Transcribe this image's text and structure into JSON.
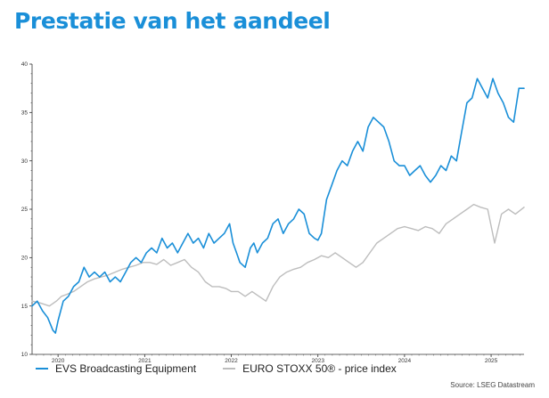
{
  "title": "Prestatie van het aandeel",
  "colors": {
    "title": "#1a8fd8",
    "evs": "#1a8fd8",
    "index": "#bdbdbd",
    "axis": "#333333"
  },
  "legend": {
    "evs_label": "EVS Broadcasting Equipment",
    "index_label": "EURO STOXX 50® - price index"
  },
  "source": "Source: LSEG Datastream",
  "chart_data": {
    "type": "line",
    "title": "",
    "xlabel": "",
    "ylabel": "",
    "ylim": [
      10,
      40
    ],
    "yticks": [
      10,
      15,
      20,
      25,
      30,
      35,
      40
    ],
    "xlim": [
      2019.7,
      2025.38
    ],
    "xticks": [
      {
        "value": 2020.0,
        "label": "2020"
      },
      {
        "value": 2021.0,
        "label": "2021"
      },
      {
        "value": 2022.0,
        "label": "2022"
      },
      {
        "value": 2023.0,
        "label": "2023"
      },
      {
        "value": 2024.0,
        "label": "2024"
      },
      {
        "value": 2025.0,
        "label": "2025"
      }
    ],
    "grid": false,
    "legend_position": "bottom",
    "series": [
      {
        "name": "EVS Broadcasting Equipment",
        "color": "#1a8fd8",
        "x": [
          2019.7,
          2019.76,
          2019.82,
          2019.88,
          2019.94,
          2019.97,
          2020.0,
          2020.06,
          2020.12,
          2020.18,
          2020.24,
          2020.3,
          2020.36,
          2020.42,
          2020.48,
          2020.54,
          2020.6,
          2020.66,
          2020.72,
          2020.78,
          2020.84,
          2020.9,
          2020.96,
          2021.02,
          2021.08,
          2021.14,
          2021.2,
          2021.26,
          2021.32,
          2021.38,
          2021.44,
          2021.5,
          2021.56,
          2021.62,
          2021.68,
          2021.74,
          2021.8,
          2021.86,
          2021.92,
          2021.98,
          2022.02,
          2022.06,
          2022.1,
          2022.16,
          2022.22,
          2022.26,
          2022.3,
          2022.36,
          2022.42,
          2022.48,
          2022.54,
          2022.6,
          2022.66,
          2022.72,
          2022.78,
          2022.84,
          2022.9,
          2022.96,
          2023.0,
          2023.04,
          2023.1,
          2023.16,
          2023.22,
          2023.28,
          2023.34,
          2023.4,
          2023.46,
          2023.52,
          2023.58,
          2023.64,
          2023.7,
          2023.76,
          2023.82,
          2023.88,
          2023.94,
          2024.0,
          2024.06,
          2024.12,
          2024.18,
          2024.24,
          2024.3,
          2024.36,
          2024.42,
          2024.48,
          2024.54,
          2024.6,
          2024.66,
          2024.72,
          2024.78,
          2024.84,
          2024.9,
          2024.96,
          2025.02,
          2025.08,
          2025.14,
          2025.2,
          2025.26,
          2025.32,
          2025.38
        ],
        "y": [
          15.0,
          15.5,
          14.5,
          13.8,
          12.5,
          12.2,
          13.5,
          15.5,
          16.0,
          17.0,
          17.5,
          19.0,
          18.0,
          18.5,
          18.0,
          18.5,
          17.5,
          18.0,
          17.5,
          18.5,
          19.5,
          20.0,
          19.5,
          20.5,
          21.0,
          20.5,
          22.0,
          21.0,
          21.5,
          20.5,
          21.5,
          22.5,
          21.5,
          22.0,
          21.0,
          22.5,
          21.5,
          22.0,
          22.5,
          23.5,
          21.5,
          20.5,
          19.5,
          19.0,
          21.0,
          21.5,
          20.5,
          21.5,
          22.0,
          23.5,
          24.0,
          22.5,
          23.5,
          24.0,
          25.0,
          24.5,
          22.5,
          22.0,
          21.8,
          22.5,
          26.0,
          27.5,
          29.0,
          30.0,
          29.5,
          31.0,
          32.0,
          31.0,
          33.5,
          34.5,
          34.0,
          33.5,
          32.0,
          30.0,
          29.5,
          29.5,
          28.5,
          29.0,
          29.5,
          28.5,
          27.8,
          28.5,
          29.5,
          29.0,
          30.5,
          30.0,
          33.0,
          36.0,
          36.5,
          38.5,
          37.5,
          36.5,
          38.5,
          37.0,
          36.0,
          34.5,
          34.0,
          37.5,
          37.5
        ]
      },
      {
        "name": "EURO STOXX 50® - price index",
        "color": "#bdbdbd",
        "x": [
          2019.7,
          2019.8,
          2019.9,
          2019.98,
          2020.04,
          2020.1,
          2020.18,
          2020.26,
          2020.34,
          2020.42,
          2020.5,
          2020.58,
          2020.66,
          2020.74,
          2020.82,
          2020.9,
          2020.98,
          2021.06,
          2021.14,
          2021.22,
          2021.3,
          2021.38,
          2021.46,
          2021.54,
          2021.62,
          2021.7,
          2021.78,
          2021.86,
          2021.94,
          2022.0,
          2022.08,
          2022.16,
          2022.24,
          2022.32,
          2022.4,
          2022.48,
          2022.56,
          2022.64,
          2022.72,
          2022.8,
          2022.88,
          2022.96,
          2023.04,
          2023.12,
          2023.2,
          2023.28,
          2023.36,
          2023.44,
          2023.52,
          2023.6,
          2023.68,
          2023.76,
          2023.84,
          2023.92,
          2024.0,
          2024.08,
          2024.16,
          2024.24,
          2024.32,
          2024.4,
          2024.48,
          2024.56,
          2024.64,
          2024.72,
          2024.8,
          2024.88,
          2024.96,
          2025.04,
          2025.12,
          2025.2,
          2025.28,
          2025.38
        ],
        "y": [
          15.5,
          15.3,
          15.0,
          15.5,
          16.0,
          16.2,
          16.5,
          17.0,
          17.5,
          17.8,
          18.0,
          18.2,
          18.5,
          18.8,
          19.0,
          19.2,
          19.5,
          19.5,
          19.3,
          19.8,
          19.2,
          19.5,
          19.8,
          19.0,
          18.5,
          17.5,
          17.0,
          17.0,
          16.8,
          16.5,
          16.5,
          16.0,
          16.5,
          16.0,
          15.5,
          17.0,
          18.0,
          18.5,
          18.8,
          19.0,
          19.5,
          19.8,
          20.2,
          20.0,
          20.5,
          20.0,
          19.5,
          19.0,
          19.5,
          20.5,
          21.5,
          22.0,
          22.5,
          23.0,
          23.2,
          23.0,
          22.8,
          23.2,
          23.0,
          22.5,
          23.5,
          24.0,
          24.5,
          25.0,
          25.5,
          25.2,
          25.0,
          21.5,
          24.5,
          25.0,
          24.5,
          25.2
        ]
      }
    ]
  }
}
